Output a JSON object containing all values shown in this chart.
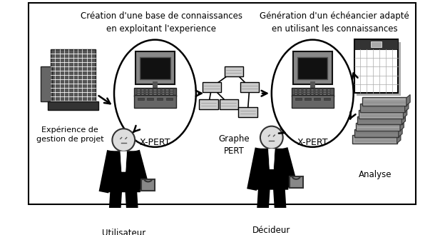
{
  "background_color": "#ffffff",
  "border_color": "#000000",
  "header_left": "Création d'une base de connaissances\nen exploitant l'experience",
  "header_right": "Génération d'un échéancier adapté\nen utilisant les connaissances",
  "label_building": "Expérience de\ngestion de projet",
  "label_xpert1": "X-PERT",
  "label_graphe": "Graphe\nPERT",
  "label_xpert2": "X-PERT",
  "label_analyse": "Analyse",
  "label_user": "Utilisateur",
  "label_decider": "Décideur"
}
